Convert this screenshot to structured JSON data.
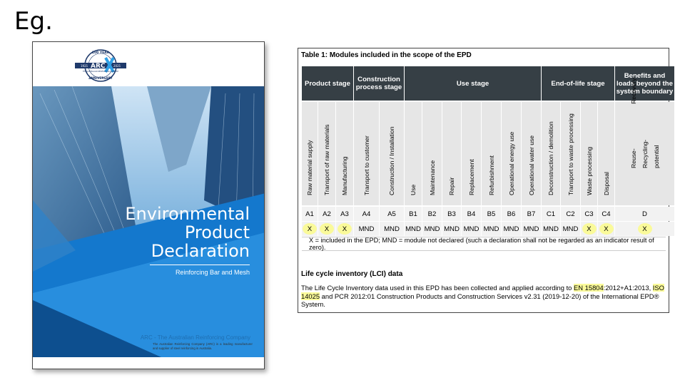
{
  "slide": {
    "title": "Eg."
  },
  "cover": {
    "logo": {
      "top_text": "100 YEAR",
      "brand": "ARC",
      "middle_text": "THE AUSTRALIAN REINFORCING COMPANY",
      "bottom_text": "ANNIVERSARY",
      "year_left": "1921",
      "year_right": "2021"
    },
    "title_lines": [
      "Environmental",
      "Product",
      "Declaration"
    ],
    "subtitle": "Reinforcing Bar and Mesh",
    "company": "ARC - The Australian Reinforcing Company",
    "description": "The Australian Reinforcing Company (ARC) is a leading manufacturer and supplier of steel reinforcing in Australia."
  },
  "epd": {
    "caption": "Table 1: Modules included in the scope of the EPD",
    "stages": [
      "Product stage",
      "Construction process stage",
      "Use stage",
      "End-of-life stage",
      "Benefits and loads beyond the system boundary"
    ],
    "modules": [
      {
        "name": "Raw material supply",
        "code": "A1",
        "value": "X"
      },
      {
        "name": "Transport of raw materials",
        "code": "A2",
        "value": "X"
      },
      {
        "name": "Manufacturing",
        "code": "A3",
        "value": "X"
      },
      {
        "name": "Transport to customer",
        "code": "A4",
        "value": "MND"
      },
      {
        "name": "Construction / Installation",
        "code": "A5",
        "value": "MND"
      },
      {
        "name": "Use",
        "code": "B1",
        "value": "MND"
      },
      {
        "name": "Maintenance",
        "code": "B2",
        "value": "MND"
      },
      {
        "name": "Repair",
        "code": "B3",
        "value": "MND"
      },
      {
        "name": "Replacement",
        "code": "B4",
        "value": "MND"
      },
      {
        "name": "Refurbishment",
        "code": "B5",
        "value": "MND"
      },
      {
        "name": "Operational energy use",
        "code": "B6",
        "value": "MND"
      },
      {
        "name": "Operational water use",
        "code": "B7",
        "value": "MND"
      },
      {
        "name": "Deconstruction / demolition",
        "code": "C1",
        "value": "MND"
      },
      {
        "name": "Transport to waste processing",
        "code": "C2",
        "value": "MND"
      },
      {
        "name": "Waste processing",
        "code": "C3",
        "value": "X"
      },
      {
        "name": "Disposal",
        "code": "C4",
        "value": "X"
      },
      {
        "name": "Reuse- Recovery- Recycling- potential",
        "code": "D",
        "value": "X"
      }
    ],
    "legend": "X = included in the EPD; MND = module not declared (such a declaration shall not be regarded as an indicator result of zero).",
    "lci_title": "Life cycle inventory (LCI) data",
    "lci_parts": [
      "The Life Cycle Inventory data used in this EPD has been collected and applied according to ",
      "EN 15804",
      ":2012+A1:2013, ",
      "ISO 14025",
      " and PCR 2012:01 Construction Products and Construction Services v2.31 (2019-12-20) of the International EPD® System."
    ],
    "highlight_color": "#fafa9a"
  }
}
